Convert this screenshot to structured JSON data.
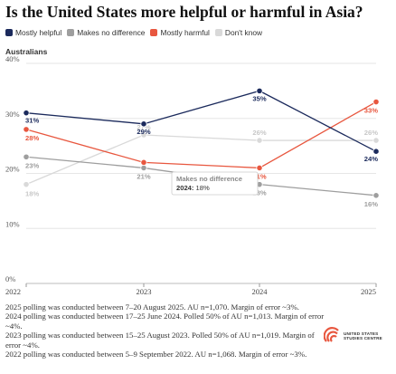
{
  "title": "Is the United States more helpful or harmful in Asia?",
  "subtitle": "Australians",
  "legend": [
    {
      "label": "Mostly helpful",
      "color": "#1b2a5c"
    },
    {
      "label": "Makes no difference",
      "color": "#9e9e9e"
    },
    {
      "label": "Mostly harmful",
      "color": "#e8573f"
    },
    {
      "label": "Don't know",
      "color": "#d9d9d9"
    }
  ],
  "tooltip": {
    "series": "Makes no difference",
    "year": "2024",
    "value": "18%"
  },
  "notes": [
    "2025 polling was conducted between 7–20 August 2025. AU n=1,070. Margin of error ~3%.",
    "2024 polling was conducted between 17–25 June 2024. Polled 50% of AU n=1,013. Margin of error ~4%.",
    "2023 polling was conducted between 15–25 August 2023. Polled 50% of AU n=1,019. Margin of error ~4%.",
    "2022 polling was conducted between 5–9 September 2022. AU n=1,068. Margin of error ~3%."
  ],
  "logo": {
    "line1": "UNITED STATES",
    "line2": "STUDIES CENTRE",
    "color": "#e8573f"
  },
  "chart_data": {
    "type": "line",
    "title": "Is the United States more helpful or harmful in Asia?",
    "subtitle": "Australians",
    "x": [
      "2022",
      "2023",
      "2024",
      "2025"
    ],
    "ylim": [
      0,
      40
    ],
    "yticks": [
      "0%",
      "10%",
      "20%",
      "30%",
      "40%"
    ],
    "grid": true,
    "legend_position": "top-left",
    "series": [
      {
        "name": "Don't know",
        "color": "#d9d9d9",
        "values": [
          18,
          27,
          26,
          26
        ],
        "labels": [
          "18%",
          "27%",
          "26%",
          "26%"
        ]
      },
      {
        "name": "Makes no difference",
        "color": "#9e9e9e",
        "values": [
          23,
          21,
          18,
          16
        ],
        "labels": [
          "23%",
          "21%",
          "18%",
          "16%"
        ]
      },
      {
        "name": "Mostly harmful",
        "color": "#e8573f",
        "values": [
          28,
          22,
          21,
          33
        ],
        "labels": [
          "28%",
          "",
          "21%",
          "33%"
        ]
      },
      {
        "name": "Mostly helpful",
        "color": "#1b2a5c",
        "values": [
          31,
          29,
          35,
          24
        ],
        "labels": [
          "31%",
          "29%",
          "35%",
          "24%"
        ]
      }
    ]
  }
}
